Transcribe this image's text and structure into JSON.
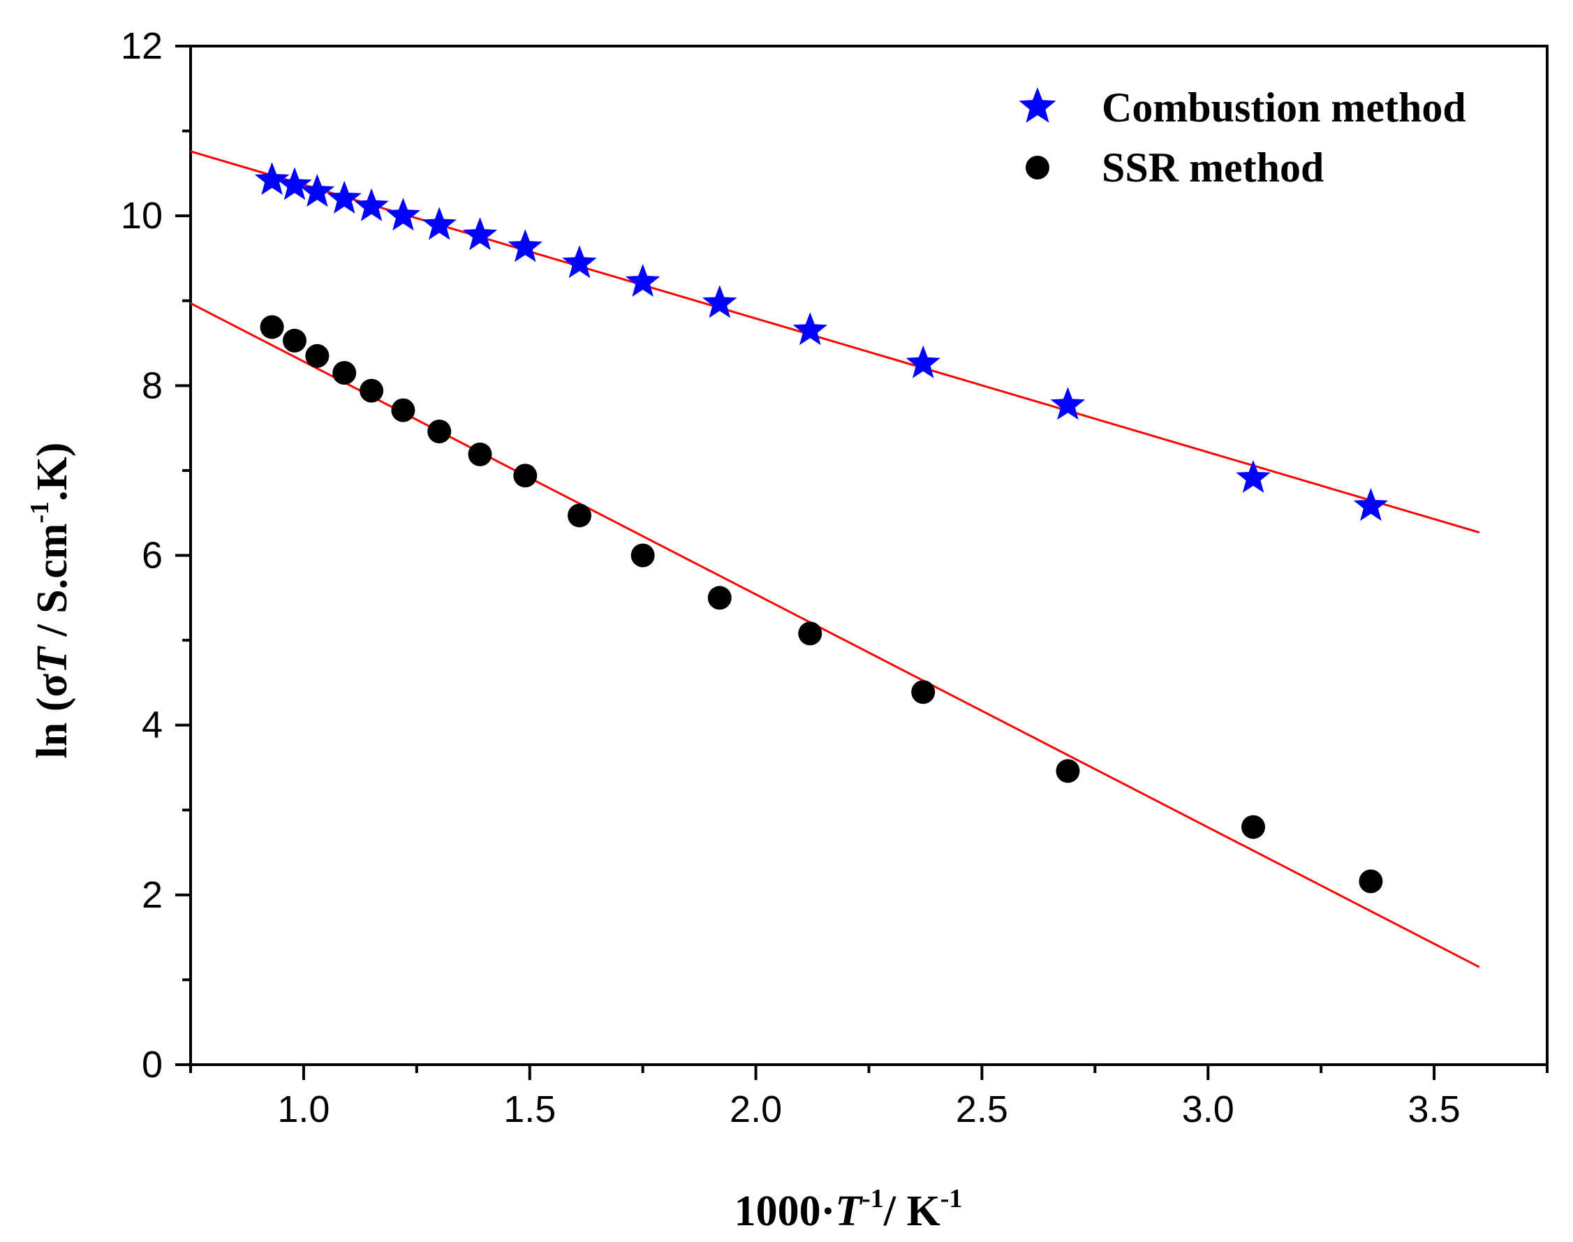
{
  "chart_data": {
    "type": "scatter",
    "title": "",
    "xlabel": {
      "prefix": "1000·",
      "var": "T",
      "exp1": "-1",
      "mid": "/ K",
      "exp2": "-1"
    },
    "ylabel": {
      "prefix": "ln (",
      "sigma": "σ",
      "var": "T",
      "mid": " / S.cm",
      "exp": "-1",
      "suffix": ".K)"
    },
    "xlim": [
      0.75,
      3.75
    ],
    "ylim": [
      0,
      12
    ],
    "xticks": [
      1.0,
      1.5,
      2.0,
      2.5,
      3.0,
      3.5
    ],
    "xtick_labels": [
      "1.0",
      "1.5",
      "2.0",
      "2.5",
      "3.0",
      "3.5"
    ],
    "yticks": [
      0,
      2,
      4,
      6,
      8,
      10,
      12
    ],
    "ytick_labels": [
      "0",
      "2",
      "4",
      "6",
      "8",
      "10",
      "12"
    ],
    "legend_position": "top-right",
    "series": [
      {
        "name": "Combustion method",
        "marker": "star",
        "color": "#0000ff",
        "x": [
          0.93,
          0.98,
          1.03,
          1.09,
          1.15,
          1.22,
          1.3,
          1.39,
          1.49,
          1.61,
          1.75,
          1.92,
          2.12,
          2.37,
          2.69,
          3.1,
          3.36
        ],
        "y": [
          10.42,
          10.36,
          10.28,
          10.2,
          10.11,
          10.0,
          9.89,
          9.77,
          9.63,
          9.44,
          9.22,
          8.97,
          8.65,
          8.26,
          7.77,
          6.91,
          6.58
        ],
        "fit": {
          "x": [
            0.75,
            3.6
          ],
          "y": [
            10.76,
            6.27
          ],
          "color": "#ff0000"
        }
      },
      {
        "name": "SSR method",
        "marker": "circle",
        "color": "#000000",
        "x": [
          0.93,
          0.98,
          1.03,
          1.09,
          1.15,
          1.22,
          1.3,
          1.39,
          1.49,
          1.61,
          1.75,
          1.92,
          2.12,
          2.37,
          2.69,
          3.1,
          3.36
        ],
        "y": [
          8.69,
          8.53,
          8.35,
          8.15,
          7.94,
          7.71,
          7.46,
          7.19,
          6.94,
          6.47,
          6.0,
          5.5,
          5.08,
          4.39,
          3.46,
          2.8,
          2.16
        ],
        "fit": {
          "x": [
            0.75,
            3.6
          ],
          "y": [
            8.97,
            1.15
          ],
          "color": "#ff0000"
        }
      }
    ]
  }
}
